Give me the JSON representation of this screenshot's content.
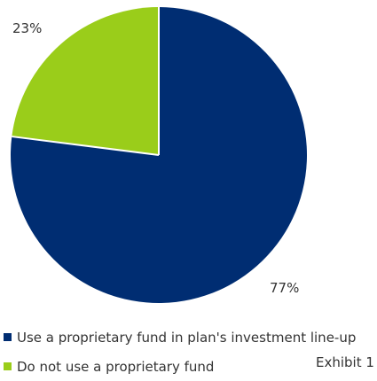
{
  "chart_data": {
    "type": "pie",
    "title": "",
    "series": [
      {
        "name": "Use a proprietary fund in plan's investment line-up",
        "value": 77,
        "label": "77%",
        "color": "#002D72"
      },
      {
        "name": "Do not use a proprietary fund",
        "value": 23,
        "label": "23%",
        "color": "#9ACD1A"
      }
    ],
    "start": "12 o'clock",
    "direction": "clockwise",
    "legend_position": "bottom-left"
  },
  "footnote": "Exhibit 1"
}
